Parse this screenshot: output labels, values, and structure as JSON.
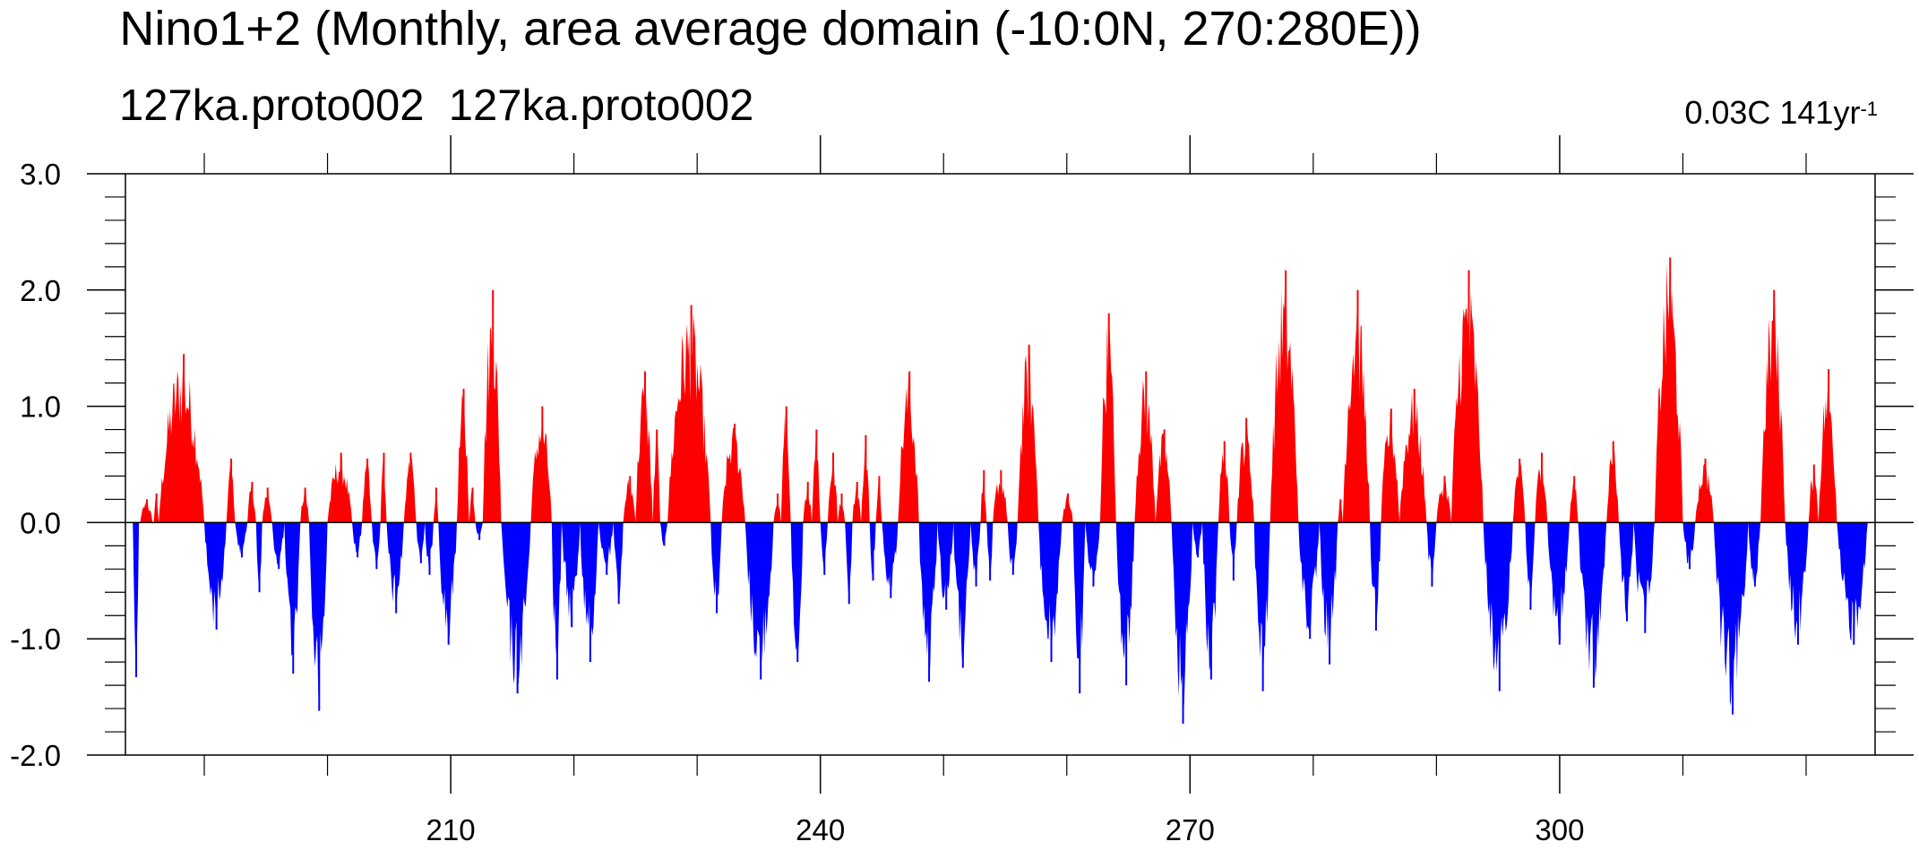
{
  "title": "Nino1+2 (Monthly, area average domain (-10:0N, 270:280E))",
  "subtitle_left": "127ka.proto002",
  "subtitle_right": "127ka.proto002",
  "annotation": {
    "text": "0.03C 141yr",
    "superscript": "-1"
  },
  "colors": {
    "positive": "#ff0000",
    "negative": "#0000ff",
    "axis": "#000000"
  },
  "chart_data": {
    "type": "bar",
    "description_of_series": "monthly anomaly, filled above zero in red and below zero in blue",
    "xlim": [
      183.6,
      325.6
    ],
    "ylim": [
      -2.0,
      3.0
    ],
    "x_ticks": [
      210,
      240,
      270,
      300
    ],
    "x_tick_labels": [
      "210",
      "240",
      "270",
      "300"
    ],
    "y_ticks": [
      -2.0,
      -1.0,
      0.0,
      1.0,
      2.0,
      3.0
    ],
    "y_tick_labels": [
      "-2.0",
      "-1.0",
      "0.0",
      "1.0",
      "2.0",
      "3.0"
    ],
    "grid": false,
    "events": [
      {
        "start": 184.2,
        "end": 184.7,
        "peak": -1.33
      },
      {
        "start": 184.8,
        "end": 185.8,
        "peak": 0.2
      },
      {
        "start": 185.9,
        "end": 186.3,
        "peak": 0.25
      },
      {
        "start": 186.3,
        "end": 190.0,
        "peak": 1.45
      },
      {
        "start": 190.0,
        "end": 191.8,
        "peak": -0.92
      },
      {
        "start": 191.8,
        "end": 192.5,
        "peak": 0.55
      },
      {
        "start": 192.5,
        "end": 193.5,
        "peak": -0.3
      },
      {
        "start": 193.5,
        "end": 194.2,
        "peak": 0.35
      },
      {
        "start": 194.2,
        "end": 194.7,
        "peak": -0.6
      },
      {
        "start": 194.7,
        "end": 195.5,
        "peak": 0.3
      },
      {
        "start": 195.5,
        "end": 196.5,
        "peak": -0.4
      },
      {
        "start": 196.5,
        "end": 197.8,
        "peak": -1.3
      },
      {
        "start": 197.8,
        "end": 198.5,
        "peak": 0.3
      },
      {
        "start": 198.5,
        "end": 200.0,
        "peak": -1.62
      },
      {
        "start": 200.0,
        "end": 202.0,
        "peak": 0.6
      },
      {
        "start": 202.0,
        "end": 202.8,
        "peak": -0.3
      },
      {
        "start": 202.8,
        "end": 203.6,
        "peak": 0.55
      },
      {
        "start": 203.6,
        "end": 204.3,
        "peak": -0.4
      },
      {
        "start": 204.3,
        "end": 204.8,
        "peak": 0.6
      },
      {
        "start": 204.8,
        "end": 206.2,
        "peak": -0.78
      },
      {
        "start": 206.2,
        "end": 207.2,
        "peak": 0.6
      },
      {
        "start": 207.2,
        "end": 207.9,
        "peak": -0.35
      },
      {
        "start": 207.9,
        "end": 208.6,
        "peak": -0.45
      },
      {
        "start": 208.6,
        "end": 209.0,
        "peak": 0.3
      },
      {
        "start": 209.0,
        "end": 210.5,
        "peak": -1.05
      },
      {
        "start": 210.5,
        "end": 211.5,
        "peak": 1.15
      },
      {
        "start": 211.5,
        "end": 212.0,
        "peak": 0.3
      },
      {
        "start": 212.0,
        "end": 212.6,
        "peak": -0.15
      },
      {
        "start": 212.6,
        "end": 214.1,
        "peak": 2.0
      },
      {
        "start": 214.1,
        "end": 216.5,
        "peak": -1.47
      },
      {
        "start": 216.5,
        "end": 218.2,
        "peak": 1.0
      },
      {
        "start": 218.2,
        "end": 219.0,
        "peak": -1.35
      },
      {
        "start": 219.0,
        "end": 220.5,
        "peak": -0.9
      },
      {
        "start": 220.5,
        "end": 222.0,
        "peak": -1.2
      },
      {
        "start": 222.0,
        "end": 223.2,
        "peak": -0.45
      },
      {
        "start": 223.2,
        "end": 224.0,
        "peak": -0.7
      },
      {
        "start": 224.0,
        "end": 225.0,
        "peak": 0.4
      },
      {
        "start": 225.0,
        "end": 226.4,
        "peak": 1.3
      },
      {
        "start": 226.4,
        "end": 227.0,
        "peak": 0.8
      },
      {
        "start": 227.0,
        "end": 227.6,
        "peak": -0.2
      },
      {
        "start": 227.6,
        "end": 231.1,
        "peak": 1.87
      },
      {
        "start": 231.1,
        "end": 232.0,
        "peak": -0.78
      },
      {
        "start": 232.0,
        "end": 233.9,
        "peak": 0.85
      },
      {
        "start": 233.9,
        "end": 236.2,
        "peak": -1.35
      },
      {
        "start": 236.2,
        "end": 236.8,
        "peak": 0.25
      },
      {
        "start": 236.8,
        "end": 237.6,
        "peak": 1.0
      },
      {
        "start": 237.6,
        "end": 238.6,
        "peak": -1.2
      },
      {
        "start": 238.6,
        "end": 239.3,
        "peak": 0.35
      },
      {
        "start": 239.3,
        "end": 240.0,
        "peak": 0.8
      },
      {
        "start": 240.0,
        "end": 240.6,
        "peak": -0.45
      },
      {
        "start": 240.6,
        "end": 241.4,
        "peak": 0.6
      },
      {
        "start": 241.4,
        "end": 242.0,
        "peak": 0.25
      },
      {
        "start": 242.0,
        "end": 242.6,
        "peak": -0.7
      },
      {
        "start": 242.6,
        "end": 243.3,
        "peak": 0.35
      },
      {
        "start": 243.3,
        "end": 244.0,
        "peak": 0.75
      },
      {
        "start": 244.0,
        "end": 244.5,
        "peak": -0.5
      },
      {
        "start": 244.5,
        "end": 245.0,
        "peak": 0.4
      },
      {
        "start": 245.0,
        "end": 246.3,
        "peak": -0.65
      },
      {
        "start": 246.3,
        "end": 248.0,
        "peak": 1.3
      },
      {
        "start": 248.0,
        "end": 249.5,
        "peak": -1.37
      },
      {
        "start": 249.5,
        "end": 250.8,
        "peak": -0.75
      },
      {
        "start": 250.8,
        "end": 252.2,
        "peak": -1.25
      },
      {
        "start": 252.2,
        "end": 253.0,
        "peak": -0.55
      },
      {
        "start": 253.0,
        "end": 253.5,
        "peak": 0.45
      },
      {
        "start": 253.5,
        "end": 254.0,
        "peak": -0.5
      },
      {
        "start": 254.0,
        "end": 255.2,
        "peak": 0.45
      },
      {
        "start": 255.2,
        "end": 256.0,
        "peak": -0.45
      },
      {
        "start": 256.0,
        "end": 257.7,
        "peak": 1.53
      },
      {
        "start": 257.7,
        "end": 259.6,
        "peak": -1.2
      },
      {
        "start": 259.6,
        "end": 260.5,
        "peak": 0.25
      },
      {
        "start": 260.5,
        "end": 261.5,
        "peak": -1.47
      },
      {
        "start": 261.5,
        "end": 262.7,
        "peak": -0.55
      },
      {
        "start": 262.7,
        "end": 264.0,
        "peak": 1.8
      },
      {
        "start": 264.0,
        "end": 265.5,
        "peak": -1.4
      },
      {
        "start": 265.5,
        "end": 267.2,
        "peak": 1.3
      },
      {
        "start": 267.2,
        "end": 268.5,
        "peak": 0.8
      },
      {
        "start": 268.5,
        "end": 270.2,
        "peak": -1.73
      },
      {
        "start": 270.2,
        "end": 271.0,
        "peak": -0.3
      },
      {
        "start": 271.0,
        "end": 272.3,
        "peak": -1.35
      },
      {
        "start": 272.3,
        "end": 273.2,
        "peak": 0.7
      },
      {
        "start": 273.2,
        "end": 273.8,
        "peak": -0.5
      },
      {
        "start": 273.8,
        "end": 275.2,
        "peak": 0.9
      },
      {
        "start": 275.2,
        "end": 276.5,
        "peak": -1.45
      },
      {
        "start": 276.5,
        "end": 278.8,
        "peak": 2.17
      },
      {
        "start": 278.8,
        "end": 280.5,
        "peak": -1.0
      },
      {
        "start": 280.5,
        "end": 282.0,
        "peak": -1.22
      },
      {
        "start": 282.0,
        "end": 282.4,
        "peak": 0.2
      },
      {
        "start": 282.4,
        "end": 284.6,
        "peak": 2.0
      },
      {
        "start": 284.6,
        "end": 285.5,
        "peak": -0.93
      },
      {
        "start": 285.5,
        "end": 287.0,
        "peak": 0.98
      },
      {
        "start": 287.0,
        "end": 289.2,
        "peak": 1.15
      },
      {
        "start": 289.2,
        "end": 290.0,
        "peak": -0.55
      },
      {
        "start": 290.0,
        "end": 291.2,
        "peak": 0.4
      },
      {
        "start": 291.2,
        "end": 293.8,
        "peak": 2.17
      },
      {
        "start": 293.8,
        "end": 296.2,
        "peak": -1.45
      },
      {
        "start": 296.2,
        "end": 297.2,
        "peak": 0.55
      },
      {
        "start": 297.2,
        "end": 298.0,
        "peak": -0.75
      },
      {
        "start": 298.0,
        "end": 299.0,
        "peak": 0.6
      },
      {
        "start": 299.0,
        "end": 300.8,
        "peak": -1.05
      },
      {
        "start": 300.8,
        "end": 301.5,
        "peak": 0.4
      },
      {
        "start": 301.5,
        "end": 303.8,
        "peak": -1.42
      },
      {
        "start": 303.8,
        "end": 304.8,
        "peak": 0.7
      },
      {
        "start": 304.8,
        "end": 306.0,
        "peak": -0.85
      },
      {
        "start": 306.0,
        "end": 307.7,
        "peak": -0.95
      },
      {
        "start": 307.7,
        "end": 310.0,
        "peak": 2.28
      },
      {
        "start": 310.0,
        "end": 311.0,
        "peak": -0.4
      },
      {
        "start": 311.0,
        "end": 312.5,
        "peak": 0.55
      },
      {
        "start": 312.5,
        "end": 315.3,
        "peak": -1.65
      },
      {
        "start": 315.3,
        "end": 316.3,
        "peak": -0.55
      },
      {
        "start": 316.3,
        "end": 318.3,
        "peak": 2.0
      },
      {
        "start": 318.3,
        "end": 320.2,
        "peak": -1.05
      },
      {
        "start": 320.2,
        "end": 321.0,
        "peak": 0.5
      },
      {
        "start": 321.0,
        "end": 322.5,
        "peak": 1.32
      },
      {
        "start": 322.5,
        "end": 325.0,
        "peak": -1.05
      }
    ]
  }
}
